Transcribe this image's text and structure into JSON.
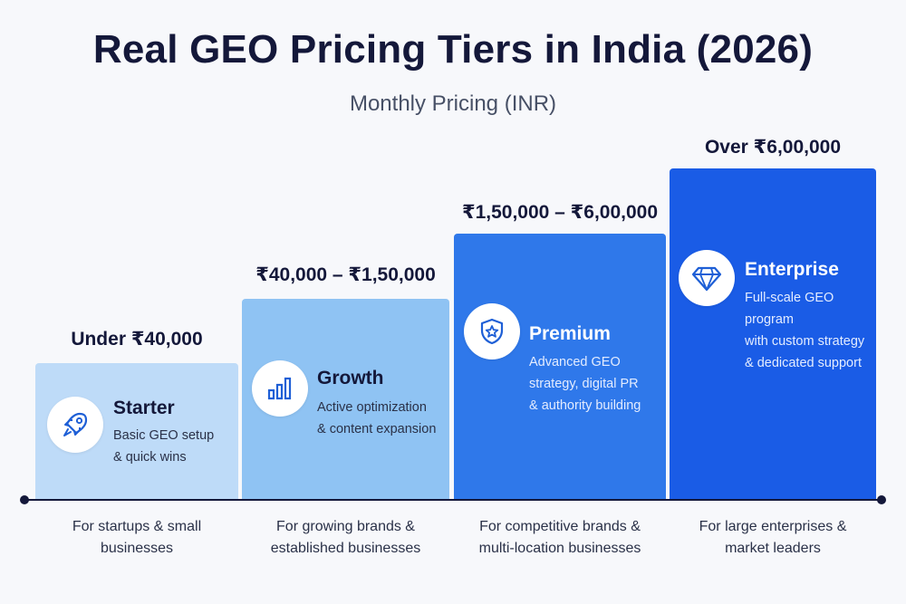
{
  "header": {
    "title": "Real GEO Pricing Tiers in India (2026)",
    "subtitle": "Monthly Pricing (INR)"
  },
  "tiers": [
    {
      "name": "Starter",
      "price": "Under ₹40,000",
      "description": [
        "Basic GEO setup",
        "& quick wins"
      ],
      "audience": [
        "For startups & small",
        "businesses"
      ],
      "icon": "rocket-icon",
      "color": "#bedbf8"
    },
    {
      "name": "Growth",
      "price": "₹40,000 – ₹1,50,000",
      "description": [
        "Active optimization",
        "& content expansion"
      ],
      "audience": [
        "For growing brands &",
        "established businesses"
      ],
      "icon": "bar-chart-icon",
      "color": "#8fc3f3"
    },
    {
      "name": "Premium",
      "price": "₹1,50,000 – ₹6,00,000",
      "description": [
        "Advanced GEO",
        "strategy, digital PR",
        "& authority building"
      ],
      "audience": [
        "For competitive brands &",
        "multi-location businesses"
      ],
      "icon": "shield-star-icon",
      "color": "#2f78ea"
    },
    {
      "name": "Enterprise",
      "price": "Over ₹6,00,000",
      "description": [
        "Full-scale GEO program",
        "with custom strategy",
        "& dedicated support"
      ],
      "audience": [
        "For large enterprises &",
        "market leaders"
      ],
      "icon": "diamond-icon",
      "color": "#1a5ce6"
    }
  ]
}
